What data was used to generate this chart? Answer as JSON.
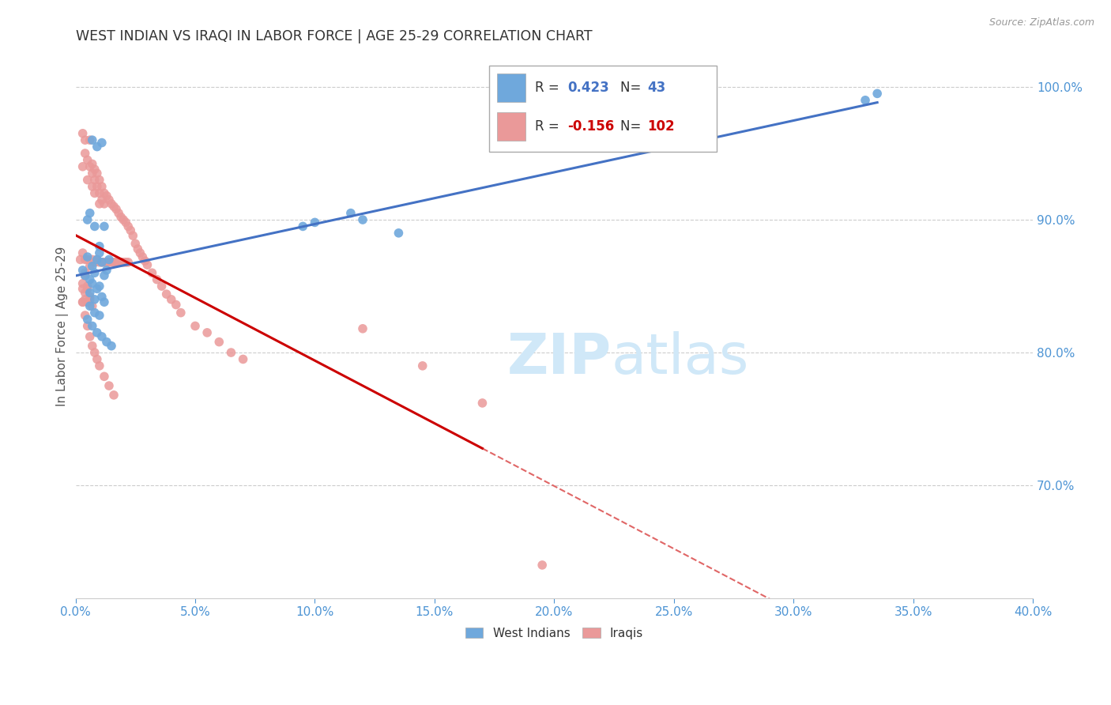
{
  "title": "WEST INDIAN VS IRAQI IN LABOR FORCE | AGE 25-29 CORRELATION CHART",
  "source": "Source: ZipAtlas.com",
  "ylabel": "In Labor Force | Age 25-29",
  "xlim": [
    0.0,
    0.4
  ],
  "ylim": [
    0.615,
    1.025
  ],
  "ytick_labels": [
    "70.0%",
    "80.0%",
    "90.0%",
    "100.0%"
  ],
  "ytick_values": [
    0.7,
    0.8,
    0.9,
    1.0
  ],
  "xtick_labels": [
    "0.0%",
    "5.0%",
    "10.0%",
    "15.0%",
    "20.0%",
    "25.0%",
    "30.0%",
    "35.0%",
    "40.0%"
  ],
  "xtick_values": [
    0.0,
    0.05,
    0.1,
    0.15,
    0.2,
    0.25,
    0.3,
    0.35,
    0.4
  ],
  "west_indian_color": "#6fa8dc",
  "iraqi_color": "#ea9999",
  "trend_west_indian_color": "#4472c4",
  "trend_iraqi_solid_color": "#cc0000",
  "trend_iraqi_dash_color": "#e06666",
  "axis_color": "#cccccc",
  "grid_color": "#cccccc",
  "right_label_color": "#4d94d4",
  "xtick_color": "#4d94d4",
  "watermark_color": "#d0e8f8",
  "r_west_indian": 0.423,
  "n_west_indian": 43,
  "r_iraqi": -0.156,
  "n_iraqi": 102,
  "legend_r_color": "#555555",
  "legend_blue_color": "#4472c4",
  "legend_red_color": "#cc0000",
  "west_indian_x": [
    0.003,
    0.004,
    0.005,
    0.006,
    0.007,
    0.008,
    0.009,
    0.01,
    0.011,
    0.012,
    0.013,
    0.014,
    0.005,
    0.006,
    0.008,
    0.01,
    0.012,
    0.007,
    0.009,
    0.011,
    0.006,
    0.008,
    0.01,
    0.012,
    0.007,
    0.009,
    0.011,
    0.006,
    0.008,
    0.01,
    0.005,
    0.007,
    0.009,
    0.011,
    0.013,
    0.015,
    0.12,
    0.135,
    0.33,
    0.335,
    0.095,
    0.1,
    0.115
  ],
  "west_indian_y": [
    0.862,
    0.858,
    0.872,
    0.855,
    0.865,
    0.86,
    0.87,
    0.875,
    0.868,
    0.858,
    0.862,
    0.87,
    0.9,
    0.905,
    0.895,
    0.88,
    0.895,
    0.96,
    0.955,
    0.958,
    0.845,
    0.84,
    0.85,
    0.838,
    0.852,
    0.848,
    0.842,
    0.835,
    0.83,
    0.828,
    0.825,
    0.82,
    0.815,
    0.812,
    0.808,
    0.805,
    0.9,
    0.89,
    0.99,
    0.995,
    0.895,
    0.898,
    0.905
  ],
  "iraqi_x": [
    0.002,
    0.003,
    0.003,
    0.004,
    0.004,
    0.004,
    0.005,
    0.005,
    0.005,
    0.006,
    0.006,
    0.006,
    0.007,
    0.007,
    0.007,
    0.007,
    0.008,
    0.008,
    0.008,
    0.008,
    0.009,
    0.009,
    0.009,
    0.01,
    0.01,
    0.01,
    0.01,
    0.011,
    0.011,
    0.011,
    0.012,
    0.012,
    0.012,
    0.013,
    0.013,
    0.014,
    0.014,
    0.015,
    0.015,
    0.016,
    0.016,
    0.017,
    0.017,
    0.018,
    0.018,
    0.019,
    0.019,
    0.02,
    0.02,
    0.021,
    0.021,
    0.022,
    0.022,
    0.023,
    0.024,
    0.025,
    0.026,
    0.027,
    0.028,
    0.029,
    0.03,
    0.032,
    0.034,
    0.036,
    0.038,
    0.04,
    0.042,
    0.044,
    0.003,
    0.004,
    0.005,
    0.006,
    0.007,
    0.004,
    0.005,
    0.006,
    0.003,
    0.004,
    0.005,
    0.003,
    0.004,
    0.003,
    0.05,
    0.055,
    0.06,
    0.065,
    0.07,
    0.003,
    0.004,
    0.005,
    0.006,
    0.007,
    0.008,
    0.009,
    0.01,
    0.012,
    0.014,
    0.016,
    0.12,
    0.145,
    0.17,
    0.195
  ],
  "iraqi_y": [
    0.87,
    0.965,
    0.94,
    0.96,
    0.95,
    0.87,
    0.945,
    0.93,
    0.87,
    0.96,
    0.94,
    0.865,
    0.942,
    0.935,
    0.925,
    0.87,
    0.938,
    0.93,
    0.92,
    0.868,
    0.935,
    0.925,
    0.87,
    0.93,
    0.92,
    0.912,
    0.868,
    0.925,
    0.915,
    0.868,
    0.92,
    0.912,
    0.868,
    0.918,
    0.868,
    0.915,
    0.868,
    0.912,
    0.868,
    0.91,
    0.868,
    0.908,
    0.868,
    0.905,
    0.868,
    0.902,
    0.868,
    0.9,
    0.868,
    0.898,
    0.868,
    0.895,
    0.868,
    0.892,
    0.888,
    0.882,
    0.878,
    0.875,
    0.872,
    0.869,
    0.866,
    0.86,
    0.855,
    0.85,
    0.844,
    0.84,
    0.836,
    0.83,
    0.875,
    0.86,
    0.85,
    0.842,
    0.835,
    0.858,
    0.848,
    0.84,
    0.852,
    0.845,
    0.838,
    0.848,
    0.84,
    0.838,
    0.82,
    0.815,
    0.808,
    0.8,
    0.795,
    0.838,
    0.828,
    0.82,
    0.812,
    0.805,
    0.8,
    0.795,
    0.79,
    0.782,
    0.775,
    0.768,
    0.818,
    0.79,
    0.762,
    0.64
  ]
}
